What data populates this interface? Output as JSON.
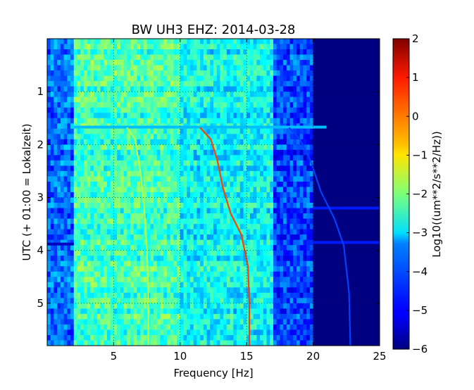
{
  "chart_data": {
    "type": "heatmap",
    "title": "BW UH3 EHZ: 2014-03-28",
    "xlabel": "Frequency [Hz]",
    "ylabel": "UTC (+ 01:00 = Lokalzeit)",
    "xlim": [
      0,
      25
    ],
    "ylim": [
      5.8,
      0
    ],
    "xticks": [
      5,
      10,
      15,
      20,
      25
    ],
    "yticks": [
      1,
      2,
      3,
      4,
      5
    ],
    "grid": true,
    "colorbar": {
      "label": "Log10((um**2/s**2/Hz))",
      "range": [
        -6,
        2
      ],
      "ticks": [
        2,
        1,
        0,
        -1,
        -2,
        -3,
        -4,
        -5,
        -6
      ],
      "colormap": "jet"
    },
    "background_levels": [
      {
        "frequency": [
          0,
          2
        ],
        "level": -4.2
      },
      {
        "frequency": [
          2,
          10
        ],
        "level": -2.5
      },
      {
        "frequency": [
          10,
          17
        ],
        "level": -3.0
      },
      {
        "frequency": [
          17,
          20
        ],
        "level": -4.5
      },
      {
        "frequency": [
          20,
          25
        ],
        "level": -6.0
      }
    ],
    "horizontal_lines": [
      {
        "time": 1.67,
        "frequency": [
          2,
          21
        ],
        "level": -3.5
      },
      {
        "time": 3.88,
        "frequency": [
          0,
          2
        ],
        "level": -5.5
      },
      {
        "time": 3.2,
        "frequency": [
          20,
          25
        ],
        "level": -4.8
      },
      {
        "time": 3.85,
        "frequency": [
          20,
          25
        ],
        "level": -4.8
      }
    ],
    "series": [
      {
        "points": [
          [
            6.0,
            1.68
          ],
          [
            6.6,
            1.9
          ],
          [
            7.0,
            2.5
          ],
          [
            7.3,
            3.2
          ],
          [
            7.5,
            4.0
          ],
          [
            7.6,
            4.8
          ],
          [
            7.6,
            5.8
          ]
        ],
        "level": -1.5
      },
      {
        "points": [
          [
            11.5,
            1.68
          ],
          [
            12.3,
            1.9
          ],
          [
            12.8,
            2.3
          ],
          [
            13.2,
            2.8
          ],
          [
            13.8,
            3.3
          ],
          [
            14.6,
            3.7
          ],
          [
            15.1,
            4.3
          ],
          [
            15.2,
            5.0
          ],
          [
            15.2,
            5.8
          ]
        ],
        "level": 0.5
      },
      {
        "points": [
          [
            18.2,
            1.68
          ],
          [
            19.0,
            1.9
          ],
          [
            19.8,
            2.3
          ],
          [
            20.6,
            2.9
          ],
          [
            21.6,
            3.4
          ],
          [
            22.3,
            3.9
          ],
          [
            22.7,
            4.8
          ],
          [
            22.8,
            5.8
          ]
        ],
        "level": -4.5
      }
    ]
  }
}
